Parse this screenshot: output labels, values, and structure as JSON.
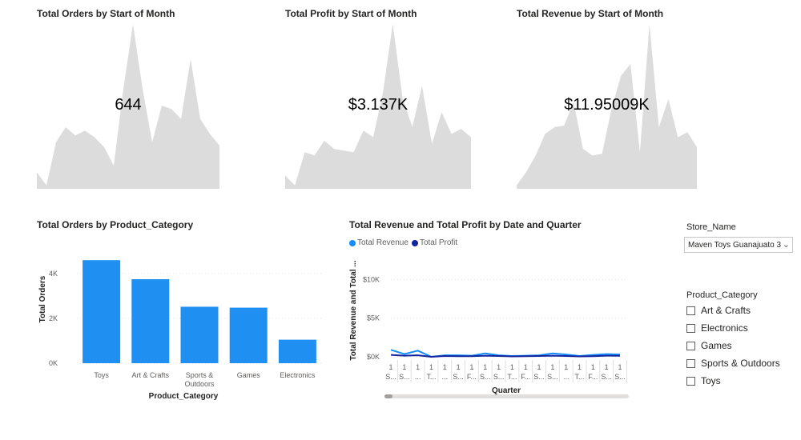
{
  "colors": {
    "kpi_area": "#dcdcdc",
    "bar": "#1f8ff2",
    "revenue": "#118dff",
    "profit": "#12239e",
    "grid": "#e1e1e1"
  },
  "kpis": [
    {
      "title": "Total Orders by Start of Month",
      "value": "644",
      "trend": [
        10,
        2,
        28,
        37,
        32,
        35,
        31,
        25,
        14,
        60,
        99,
        60,
        28,
        50,
        48,
        42,
        78,
        42,
        33,
        26
      ]
    },
    {
      "title": "Total Profit by Start of Month",
      "value": "$3.137K",
      "trend": [
        8,
        2,
        22,
        20,
        29,
        24,
        23,
        22,
        35,
        31,
        58,
        99,
        55,
        37,
        62,
        27,
        46,
        33,
        36,
        31
      ]
    },
    {
      "title": "Total Revenue by Start of Month",
      "value": "$11.95009K",
      "trend": [
        2,
        10,
        20,
        33,
        37,
        38,
        52,
        24,
        20,
        21,
        48,
        68,
        75,
        22,
        99,
        37,
        54,
        31,
        34,
        25
      ]
    }
  ],
  "chart_data": [
    {
      "type": "bar",
      "title": "Total Orders by Product_Category",
      "xlabel": "Product_Category",
      "ylabel": "Total Orders",
      "categories": [
        "Toys",
        "Art & Crafts",
        "Sports & Outdoors",
        "Games",
        "Electronics"
      ],
      "category_lines": [
        [
          "Toys"
        ],
        [
          "Art & Crafts"
        ],
        [
          "Sports &",
          "Outdoors"
        ],
        [
          "Games"
        ],
        [
          "Electronics"
        ]
      ],
      "values": [
        4600,
        3750,
        2520,
        2480,
        1050
      ],
      "ylim": [
        0,
        5000
      ],
      "yticks": [
        {
          "v": 0,
          "label": "0K"
        },
        {
          "v": 2000,
          "label": "2K"
        },
        {
          "v": 4000,
          "label": "4K"
        }
      ],
      "grid": true
    },
    {
      "type": "line",
      "title": "Total Revenue and Total Profit by Date and Quarter",
      "xlabel": "Quarter",
      "ylabel": "Total Revenue and Total ...",
      "ylim": [
        0,
        12000
      ],
      "yticks": [
        {
          "v": 0,
          "label": "$0K"
        },
        {
          "v": 5000,
          "label": "$5K"
        },
        {
          "v": 10000,
          "label": "$10K"
        }
      ],
      "x_top": [
        "1",
        "1",
        "1",
        "1",
        "1",
        "1",
        "1",
        "1",
        "1",
        "1",
        "1",
        "1",
        "1",
        "1",
        "1",
        "1",
        "1",
        "1"
      ],
      "x_bottom": [
        "S...",
        "S...",
        "...",
        "T...",
        "...",
        "S...",
        "F...",
        "S...",
        "S...",
        "T...",
        "F...",
        "S...",
        "S...",
        "...",
        "T...",
        "F...",
        "S...",
        "S..."
      ],
      "series": [
        {
          "name": "Total Revenue",
          "values": [
            900,
            350,
            800,
            0,
            200,
            200,
            150,
            450,
            200,
            100,
            150,
            200,
            450,
            300,
            100,
            250,
            350,
            300
          ]
        },
        {
          "name": "Total Profit",
          "values": [
            250,
            150,
            200,
            0,
            100,
            80,
            80,
            150,
            100,
            50,
            80,
            100,
            150,
            100,
            50,
            80,
            150,
            120
          ]
        }
      ],
      "legend_position": "top-left",
      "grid": true
    }
  ],
  "slicers": {
    "store": {
      "title": "Store_Name",
      "selected": "Maven Toys Guanajuato 3"
    },
    "category": {
      "title": "Product_Category",
      "options": [
        "Art & Crafts",
        "Electronics",
        "Games",
        "Sports & Outdoors",
        "Toys"
      ]
    }
  }
}
